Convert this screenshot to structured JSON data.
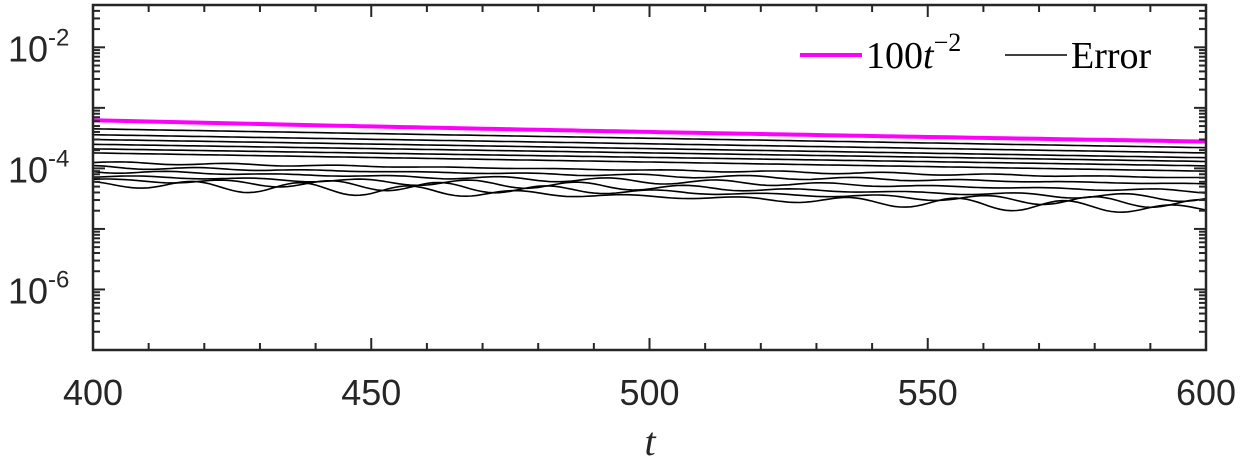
{
  "chart_data": {
    "type": "line",
    "xlabel": "t",
    "ylabel": "",
    "xlim": [
      400,
      600
    ],
    "ylim": [
      1e-07,
      0.05
    ],
    "yscale": "log",
    "x_ticks": [
      400,
      450,
      500,
      550,
      600
    ],
    "x_tick_labels": [
      "400",
      "450",
      "500",
      "550",
      "600"
    ],
    "y_ticks": [
      0.01,
      0.0001,
      1e-06
    ],
    "y_tick_labels": [
      {
        "base": "10",
        "exp": "-2"
      },
      {
        "base": "10",
        "exp": "-4"
      },
      {
        "base": "10",
        "exp": "-6"
      }
    ],
    "legend": {
      "position": "top-right",
      "entries": [
        {
          "prefix": "100",
          "var": "t",
          "sup": "−2",
          "color": "#ff00ff"
        },
        {
          "label": "Error",
          "color": "#000000"
        }
      ]
    },
    "series": [
      {
        "name": "100t^-2",
        "color": "#ff00ff",
        "formula": "100*t^-2"
      },
      {
        "name": "Error",
        "color": "#000000",
        "group": true,
        "curves": [
          {
            "start": 0.00045,
            "end": 0.00022,
            "wiggle": 0
          },
          {
            "start": 0.00036,
            "end": 0.00018,
            "wiggle": 0
          },
          {
            "start": 0.0003,
            "end": 0.00015,
            "wiggle": 0
          },
          {
            "start": 0.00025,
            "end": 0.00013,
            "wiggle": 0
          },
          {
            "start": 0.00021,
            "end": 0.00011,
            "wiggle": 0
          },
          {
            "start": 0.00018,
            "end": 9e-05,
            "wiggle": 0
          },
          {
            "start": 0.000125,
            "end": 7e-05,
            "wiggle": 0.04
          },
          {
            "start": 0.000105,
            "end": 5.5e-05,
            "wiggle": 0.06
          },
          {
            "start": 9e-05,
            "end": 4.2e-05,
            "wiggle": 0.1
          },
          {
            "start": 7.5e-05,
            "end": 3.2e-05,
            "wiggle": 0.14
          },
          {
            "start": 6.5e-05,
            "end": 2.6e-05,
            "wiggle": 0.18
          },
          {
            "start": 5.6e-05,
            "end": 2.1e-05,
            "wiggle": 0.22
          }
        ]
      }
    ],
    "grid": false
  },
  "colors": {
    "axis": "#262626",
    "reference": "#ff00ff",
    "error": "#000000"
  }
}
